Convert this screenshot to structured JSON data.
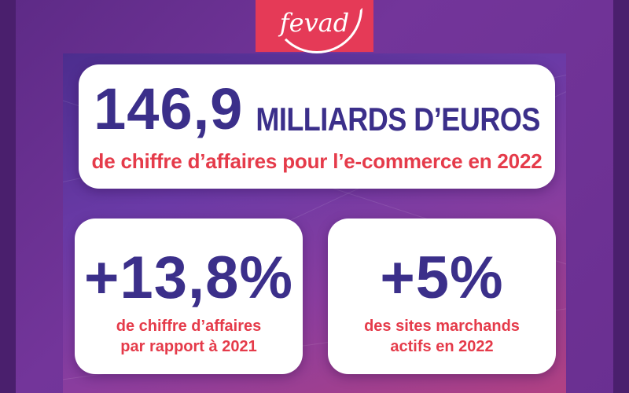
{
  "logo": {
    "text": "fevad"
  },
  "headline": {
    "value": "146,9",
    "unit": "MILLIARDS D’EUROS",
    "caption": "de chiffre d’affaires pour l’e-commerce en 2022"
  },
  "stats": [
    {
      "value": "+13,8%",
      "caption_lines": [
        "de chiffre d’affaires",
        "par rapport à 2021"
      ]
    },
    {
      "value": "+5%",
      "caption_lines": [
        "des sites marchands",
        "actifs en 2022"
      ]
    }
  ],
  "colors": {
    "background": "#6a2f91",
    "logo_bg": "#e53a57",
    "number": "#3b2f8a",
    "caption": "#e53b4a",
    "card": "#ffffff"
  }
}
